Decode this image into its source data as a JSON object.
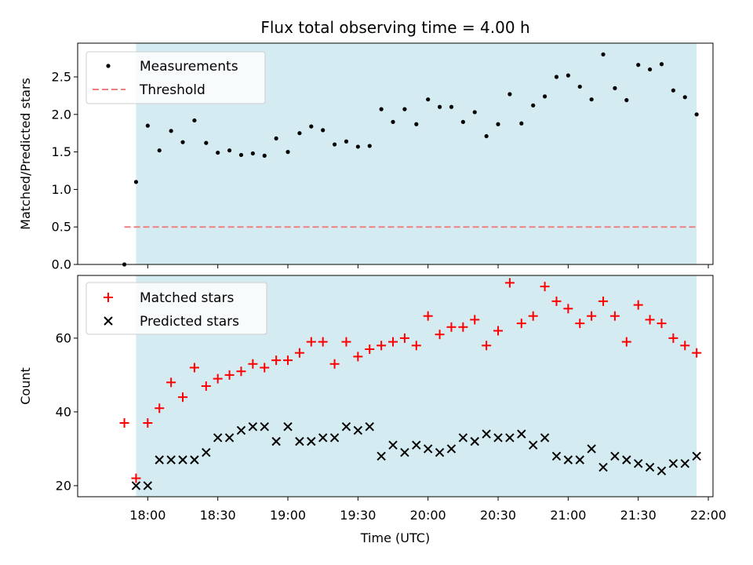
{
  "chart_data": [
    {
      "type": "scatter",
      "title": "Flux total observing time = 4.00 h",
      "xlabel": "",
      "ylabel": "Matched/Predicted stars",
      "xlim": [
        "17:30",
        "22:02"
      ],
      "ylim": [
        0,
        2.95
      ],
      "yticks": [
        "0.0",
        "0.5",
        "1.0",
        "1.5",
        "2.0",
        "2.5"
      ],
      "shaded_span": [
        "17:55",
        "21:55"
      ],
      "colors": {
        "shade": "#d4ebf1",
        "measure": "#000000",
        "threshold": "#f08080"
      },
      "legend_placement": "upper-left",
      "series": [
        {
          "name": "Measurements",
          "marker": "dot",
          "x": [
            "17:50",
            "17:55",
            "18:00",
            "18:05",
            "18:10",
            "18:15",
            "18:20",
            "18:25",
            "18:30",
            "18:35",
            "18:40",
            "18:45",
            "18:50",
            "18:55",
            "19:00",
            "19:05",
            "19:10",
            "19:15",
            "19:20",
            "19:25",
            "19:30",
            "19:35",
            "19:40",
            "19:45",
            "19:50",
            "19:55",
            "20:00",
            "20:05",
            "20:10",
            "20:15",
            "20:20",
            "20:25",
            "20:30",
            "20:35",
            "20:40",
            "20:45",
            "20:50",
            "20:55",
            "21:00",
            "21:05",
            "21:10",
            "21:15",
            "21:20",
            "21:25",
            "21:30",
            "21:35",
            "21:40",
            "21:45",
            "21:50",
            "21:55"
          ],
          "y": [
            0.0,
            1.1,
            1.85,
            1.52,
            1.78,
            1.63,
            1.92,
            1.62,
            1.49,
            1.52,
            1.46,
            1.48,
            1.45,
            1.68,
            1.5,
            1.75,
            1.84,
            1.79,
            1.6,
            1.64,
            1.57,
            1.58,
            2.07,
            1.9,
            2.07,
            1.87,
            2.2,
            2.1,
            2.1,
            1.9,
            2.03,
            1.71,
            1.87,
            2.27,
            1.88,
            2.12,
            2.24,
            2.5,
            2.52,
            2.37,
            2.2,
            2.8,
            2.35,
            2.19,
            2.66,
            2.6,
            2.67,
            2.32,
            2.23,
            2.0
          ]
        },
        {
          "name": "Threshold",
          "style": "dashed",
          "x": [
            "17:50",
            "21:55"
          ],
          "y": [
            0.5,
            0.5
          ]
        }
      ]
    },
    {
      "type": "scatter",
      "title": "",
      "xlabel": "Time (UTC)",
      "ylabel": "Count",
      "xlim": [
        "17:30",
        "22:02"
      ],
      "ylim": [
        17,
        77
      ],
      "yticks": [
        "20",
        "40",
        "60"
      ],
      "xticks": [
        "18:00",
        "18:30",
        "19:00",
        "19:30",
        "20:00",
        "20:30",
        "21:00",
        "21:30",
        "22:00"
      ],
      "shaded_span": [
        "17:55",
        "21:55"
      ],
      "colors": {
        "shade": "#d4ebf1",
        "matched": "#ff0000",
        "predicted": "#000000"
      },
      "legend_placement": "upper-left",
      "series": [
        {
          "name": "Matched stars",
          "marker": "plus",
          "x": [
            "17:50",
            "17:55",
            "18:00",
            "18:05",
            "18:10",
            "18:15",
            "18:20",
            "18:25",
            "18:30",
            "18:35",
            "18:40",
            "18:45",
            "18:50",
            "18:55",
            "19:00",
            "19:05",
            "19:10",
            "19:15",
            "19:20",
            "19:25",
            "19:30",
            "19:35",
            "19:40",
            "19:45",
            "19:50",
            "19:55",
            "20:00",
            "20:05",
            "20:10",
            "20:15",
            "20:20",
            "20:25",
            "20:30",
            "20:35",
            "20:40",
            "20:45",
            "20:50",
            "20:55",
            "21:00",
            "21:05",
            "21:10",
            "21:15",
            "21:20",
            "21:25",
            "21:30",
            "21:35",
            "21:40",
            "21:45",
            "21:50",
            "21:55"
          ],
          "y": [
            37,
            22,
            37,
            41,
            48,
            44,
            52,
            47,
            49,
            50,
            51,
            53,
            52,
            54,
            54,
            56,
            59,
            59,
            53,
            59,
            55,
            57,
            58,
            59,
            60,
            58,
            66,
            61,
            63,
            63,
            65,
            58,
            62,
            75,
            64,
            66,
            74,
            70,
            68,
            64,
            66,
            70,
            66,
            59,
            69,
            65,
            64,
            60,
            58,
            56
          ]
        },
        {
          "name": "Predicted stars",
          "marker": "x",
          "x": [
            "17:55",
            "18:00",
            "18:05",
            "18:10",
            "18:15",
            "18:20",
            "18:25",
            "18:30",
            "18:35",
            "18:40",
            "18:45",
            "18:50",
            "18:55",
            "19:00",
            "19:05",
            "19:10",
            "19:15",
            "19:20",
            "19:25",
            "19:30",
            "19:35",
            "19:40",
            "19:45",
            "19:50",
            "19:55",
            "20:00",
            "20:05",
            "20:10",
            "20:15",
            "20:20",
            "20:25",
            "20:30",
            "20:35",
            "20:40",
            "20:45",
            "20:50",
            "20:55",
            "21:00",
            "21:05",
            "21:10",
            "21:15",
            "21:20",
            "21:25",
            "21:30",
            "21:35",
            "21:40",
            "21:45",
            "21:50",
            "21:55"
          ],
          "y": [
            20,
            20,
            27,
            27,
            27,
            27,
            29,
            33,
            33,
            35,
            36,
            36,
            32,
            36,
            32,
            32,
            33,
            33,
            36,
            35,
            36,
            28,
            31,
            29,
            31,
            30,
            29,
            30,
            33,
            32,
            34,
            33,
            33,
            34,
            31,
            33,
            28,
            27,
            27,
            30,
            25,
            28,
            27,
            26,
            25,
            24,
            26,
            26,
            28
          ]
        }
      ]
    }
  ]
}
